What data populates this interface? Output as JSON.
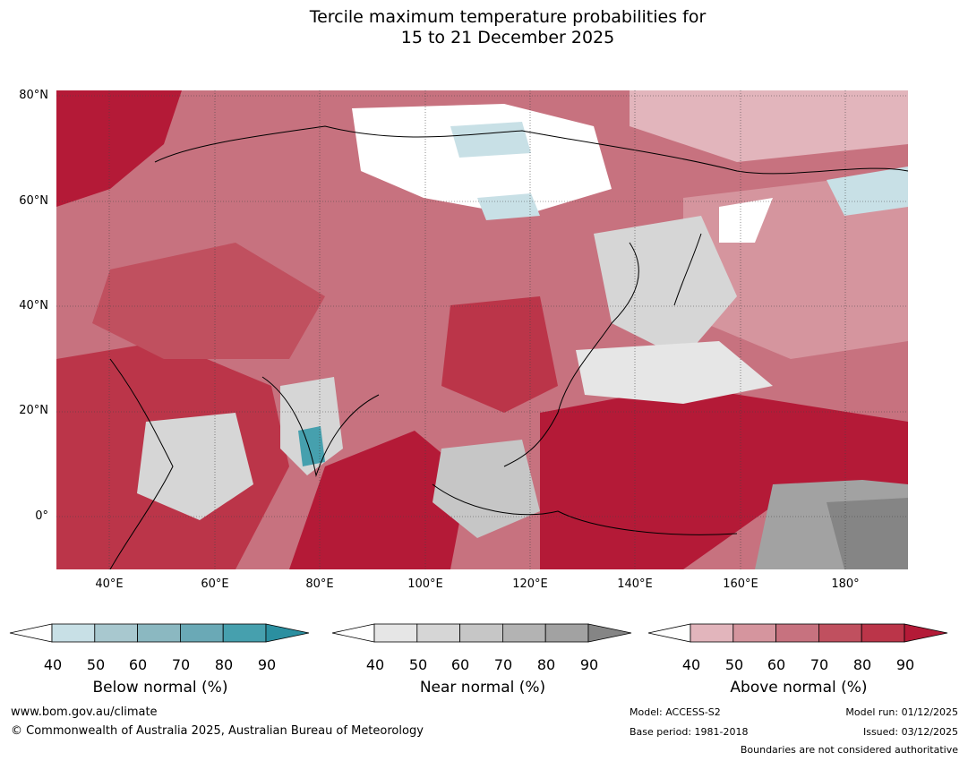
{
  "title": {
    "line1": "Tercile maximum temperature probabilities for",
    "line2": "15 to 21 December 2025"
  },
  "axes": {
    "lat_labels": [
      "80°N",
      "60°N",
      "40°N",
      "20°N",
      "0°"
    ],
    "lon_labels": [
      "40°E",
      "60°E",
      "80°E",
      "100°E",
      "120°E",
      "140°E",
      "160°E",
      "180°"
    ]
  },
  "legend": {
    "below": {
      "label": "Below normal (%)",
      "ticks": [
        "40",
        "50",
        "60",
        "70",
        "80",
        "90"
      ],
      "colors": [
        "#ffffff",
        "#c8e0e6",
        "#a8c8cf",
        "#8bb8c1",
        "#6aa9b6",
        "#46a0ae",
        "#2b8fa0"
      ]
    },
    "near": {
      "label": "Near normal (%)",
      "ticks": [
        "40",
        "50",
        "60",
        "70",
        "80",
        "90"
      ],
      "colors": [
        "#ffffff",
        "#e6e6e6",
        "#d6d6d6",
        "#c6c6c6",
        "#b3b3b3",
        "#a2a2a2",
        "#858585"
      ]
    },
    "above": {
      "label": "Above normal (%)",
      "ticks": [
        "40",
        "50",
        "60",
        "70",
        "80",
        "90"
      ],
      "colors": [
        "#ffffff",
        "#e2b5bc",
        "#d5959e",
        "#c7727f",
        "#c0505f",
        "#bb3549",
        "#b41a37"
      ]
    }
  },
  "footer": {
    "website": "www.bom.gov.au/climate",
    "copyright": "© Commonwealth of Australia 2025, Australian Bureau of Meteorology",
    "model": "Model: ACCESS-S2",
    "base_period": "Base period: 1981-2018",
    "model_run": "Model run: 01/12/2025",
    "issued": "Issued: 03/12/2025",
    "disclaimer": "Boundaries are not considered authoritative"
  }
}
